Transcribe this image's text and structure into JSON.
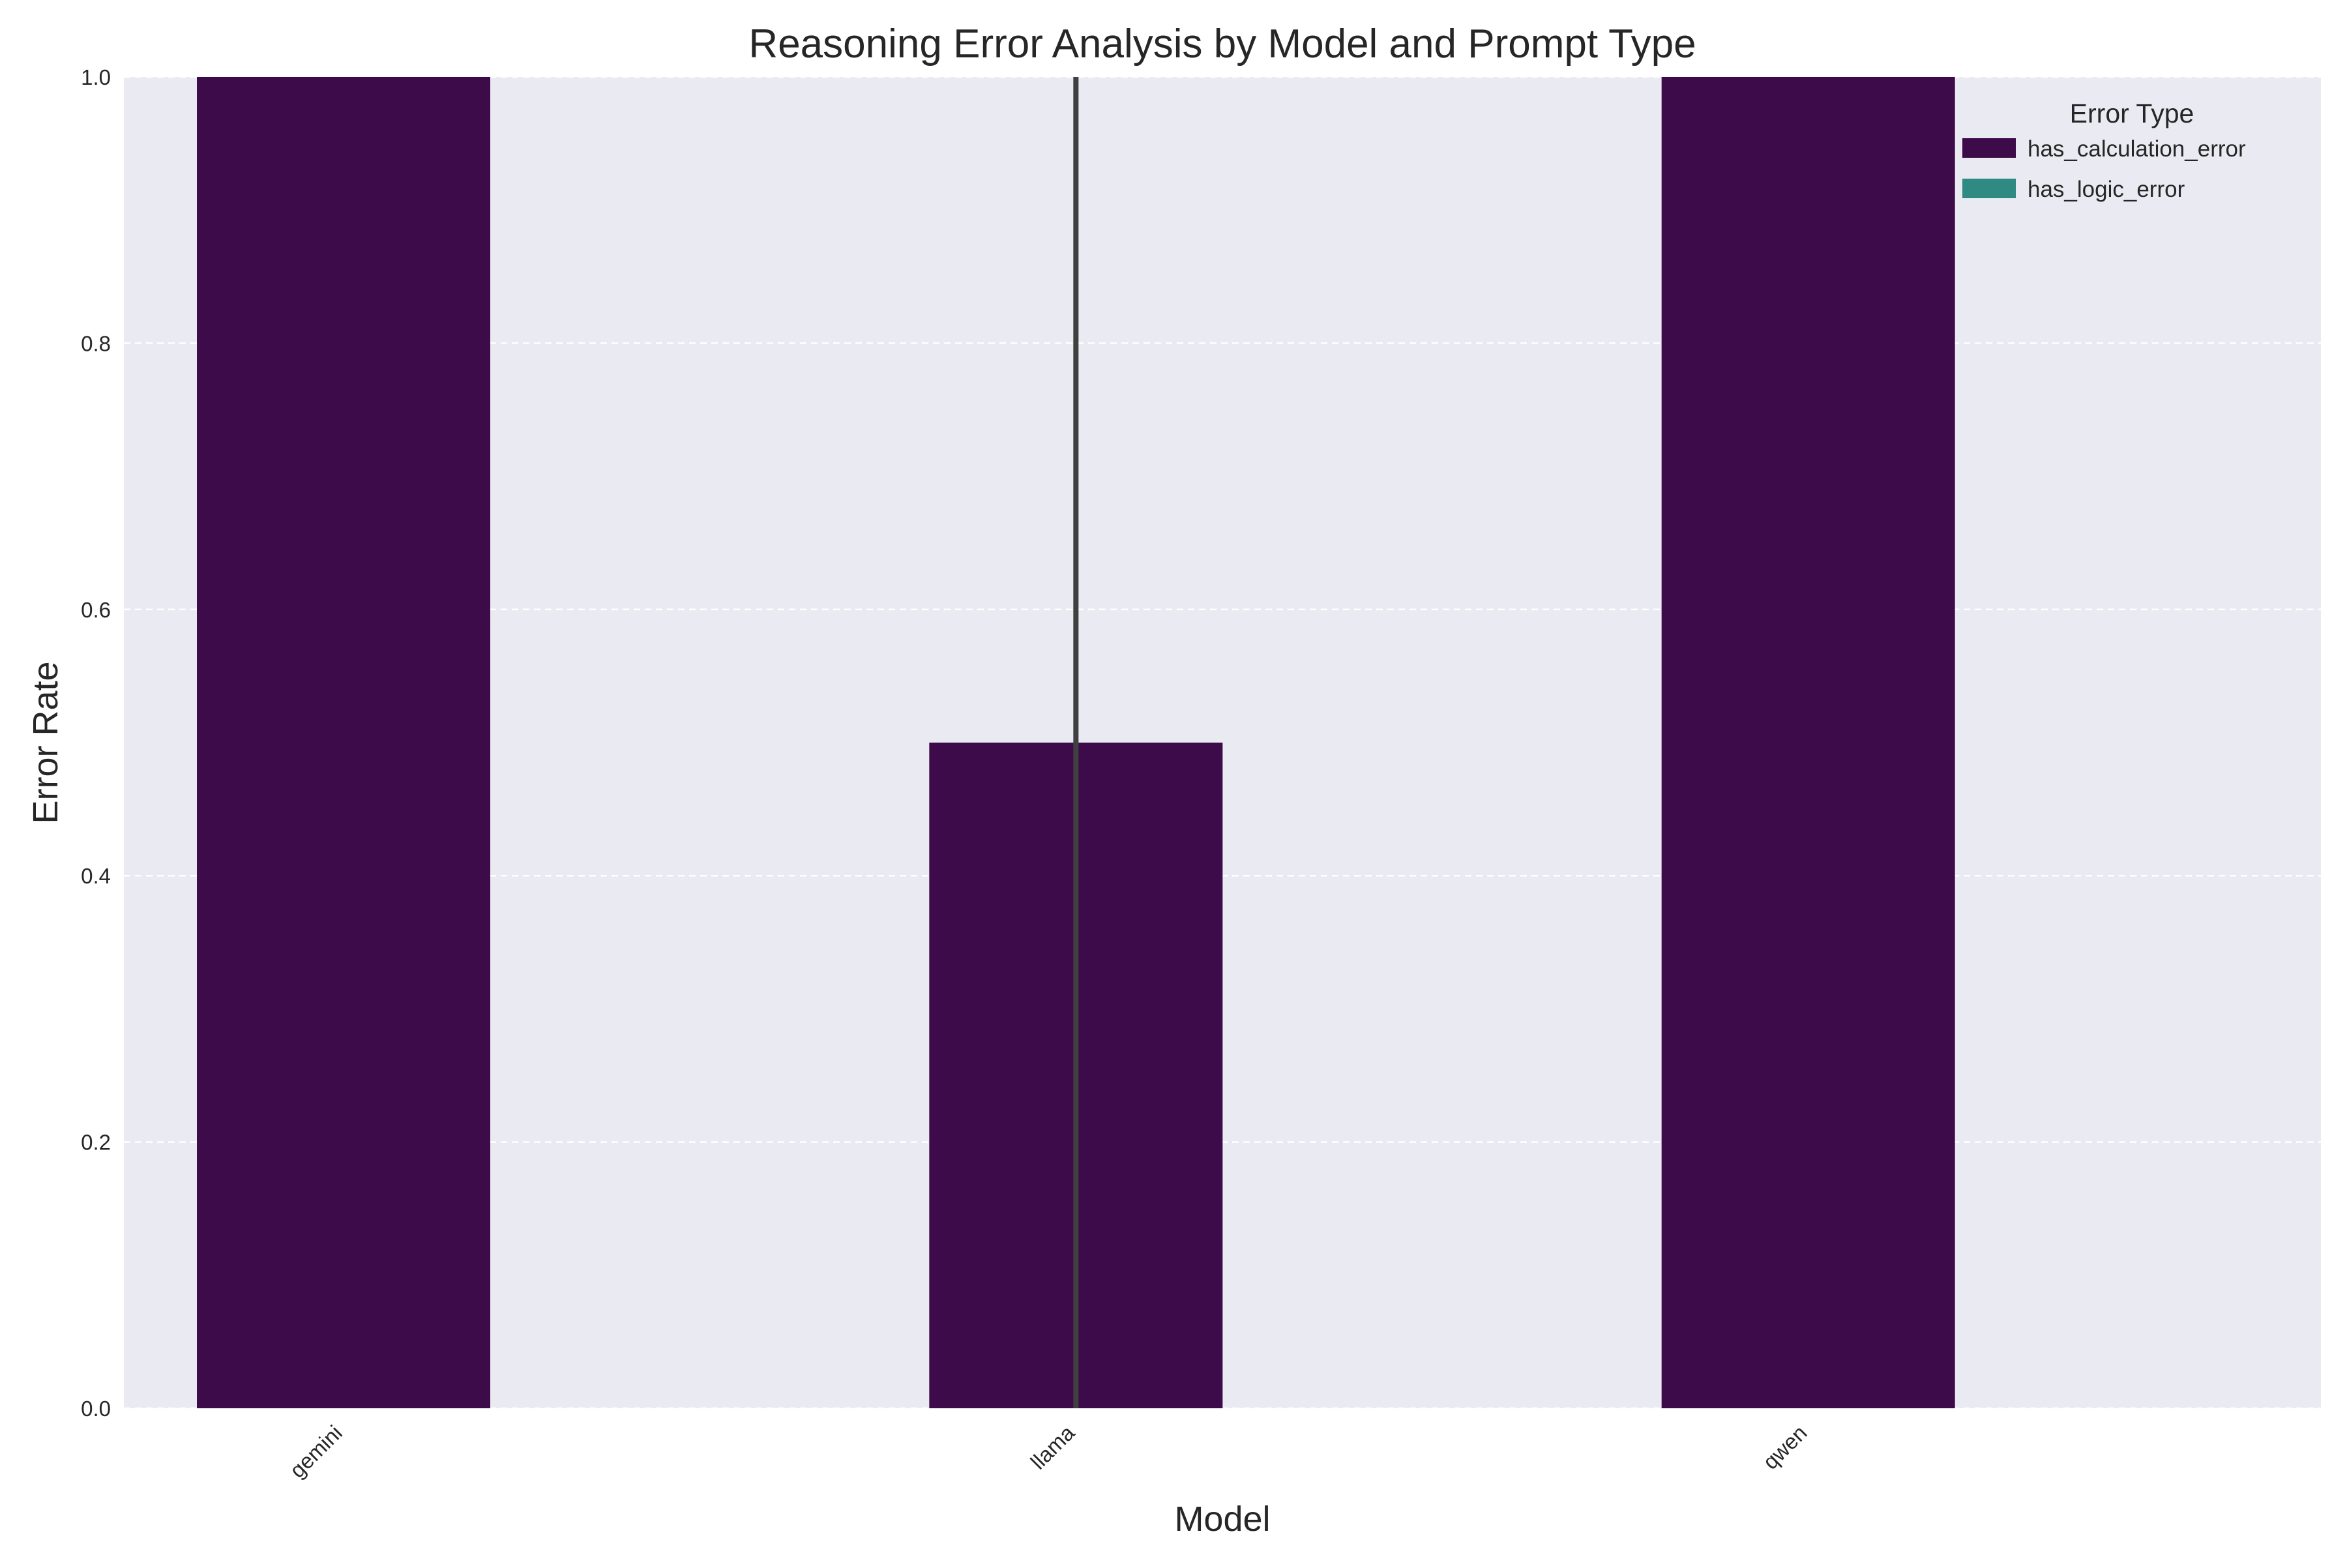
{
  "chart_data": {
    "type": "bar",
    "title": "Reasoning Error Analysis by Model and Prompt Type",
    "xlabel": "Model",
    "ylabel": "Error Rate",
    "categories": [
      "gemini",
      "llama",
      "qwen"
    ],
    "series": [
      {
        "name": "has_calculation_error",
        "values": [
          1.0,
          0.5,
          1.0
        ],
        "error_high": [
          null,
          1.0,
          null
        ],
        "error_low": [
          null,
          0.0,
          null
        ],
        "color": "#3e0b4a"
      },
      {
        "name": "has_logic_error",
        "values": [
          0.0,
          0.0,
          0.0
        ],
        "color": "#2e8a82"
      }
    ],
    "ylim": [
      0,
      1.0
    ],
    "yticks": [
      "0.0",
      "0.2",
      "0.4",
      "0.6",
      "0.8",
      "1.0"
    ],
    "grid": true,
    "legend": {
      "title": "Error Type",
      "placement": "top-right"
    },
    "colors": {
      "plot_background": "#eaeaf2",
      "grid": "#ffffff",
      "error_bar": "#404040"
    }
  }
}
